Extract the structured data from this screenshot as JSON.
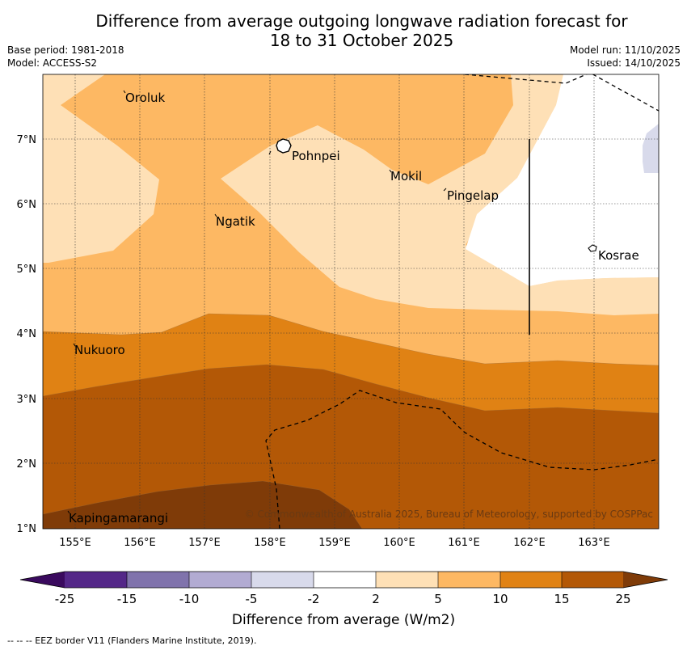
{
  "title_line1": "Difference from average outgoing longwave radiation forecast for",
  "title_line2": "18 to 31 October 2025",
  "meta": {
    "base_period": "Base period: 1981-2018",
    "model": "Model: ACCESS-S2",
    "model_run": "Model run: 11/10/2025",
    "issued": "Issued: 14/10/2025"
  },
  "axes": {
    "lat_labels": [
      "7°N",
      "6°N",
      "5°N",
      "4°N",
      "3°N",
      "2°N",
      "1°N"
    ],
    "lon_labels": [
      "155°E",
      "156°E",
      "157°E",
      "158°E",
      "159°E",
      "160°E",
      "161°E",
      "162°E",
      "163°E"
    ]
  },
  "places": [
    "Oroluk",
    "Pohnpei",
    "Mokil",
    "Pingelap",
    "Ngatik",
    "Kosrae",
    "Nukuoro",
    "Kapingamarangi"
  ],
  "copyright": "© Commonwealth of Australia 2025, Bureau of Meteorology, supported by COSPPac",
  "colorbar": {
    "ticks": [
      "-25",
      "-15",
      "-10",
      "-5",
      "-2",
      "2",
      "5",
      "10",
      "15",
      "25"
    ],
    "title": "Difference from average (W/m2)",
    "colors": [
      "#3a0a5e",
      "#542788",
      "#8073ac",
      "#b2abd2",
      "#d8daeb",
      "#ffffff",
      "#fee0b6",
      "#fdb863",
      "#e08214",
      "#b35806",
      "#7f3b08"
    ]
  },
  "footer": "--  --  -- EEZ border V11 (Flanders Marine Institute, 2019)."
}
